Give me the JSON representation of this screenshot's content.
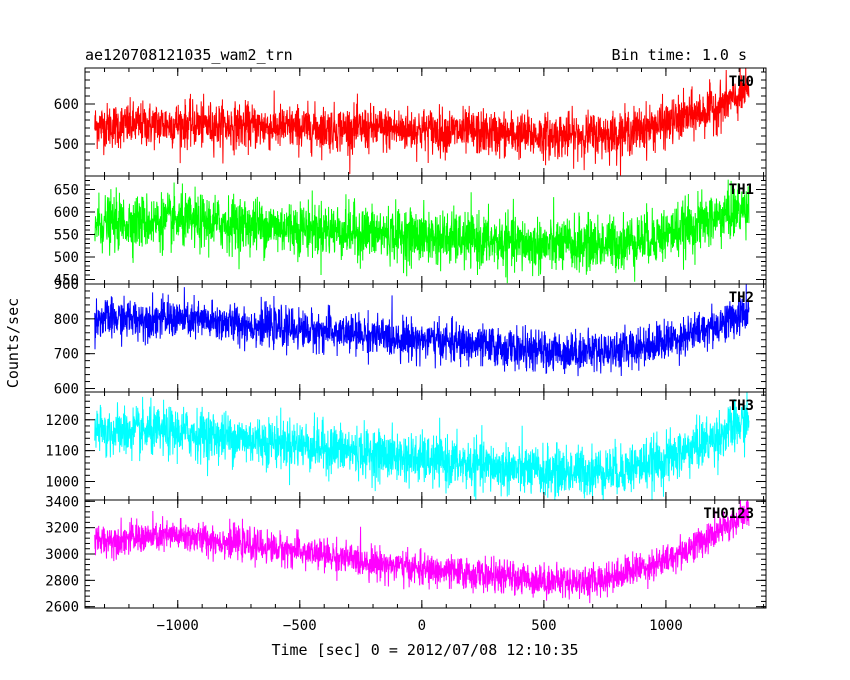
{
  "chart_data": {
    "type": "line",
    "title": "ae120708121035_wam2_trn",
    "subtitle": "Bin time: 1.0 s",
    "xlabel": "Time [sec] 0 = 2012/07/08 12:10:35",
    "ylabel": "Counts/sec",
    "xlim": [
      -1380,
      1410
    ],
    "x_ticks": [
      -1000,
      -500,
      0,
      500,
      1000
    ],
    "x_tick_labels": [
      "−1000",
      "−500",
      "0",
      "500",
      "1000"
    ],
    "x_range_data": [
      -1340,
      1340
    ],
    "legend": "none",
    "grid": false,
    "panels": [
      {
        "name": "TH0",
        "color": "#ff0000",
        "ylim": [
          420,
          690
        ],
        "y_ticks": [
          500,
          600
        ],
        "trend": {
          "x": [
            -1340,
            -1000,
            -500,
            0,
            500,
            800,
            1000,
            1200,
            1340
          ],
          "y": [
            545,
            550,
            540,
            535,
            520,
            525,
            550,
            590,
            630
          ]
        },
        "noise_sd": 28
      },
      {
        "name": "TH1",
        "color": "#00ff00",
        "ylim": [
          440,
          680
        ],
        "y_ticks": [
          450,
          500,
          550,
          600,
          650
        ],
        "trend": {
          "x": [
            -1340,
            -1000,
            -500,
            0,
            500,
            800,
            1000,
            1200,
            1340
          ],
          "y": [
            575,
            580,
            565,
            545,
            525,
            530,
            550,
            585,
            610
          ]
        },
        "noise_sd": 30
      },
      {
        "name": "TH2",
        "color": "#0000ff",
        "ylim": [
          590,
          900
        ],
        "y_ticks": [
          600,
          700,
          800,
          900
        ],
        "trend": {
          "x": [
            -1340,
            -1000,
            -500,
            0,
            500,
            800,
            1000,
            1200,
            1340
          ],
          "y": [
            800,
            800,
            770,
            740,
            705,
            710,
            735,
            780,
            820
          ]
        },
        "noise_sd": 28
      },
      {
        "name": "TH3",
        "color": "#00ffff",
        "ylim": [
          940,
          1290
        ],
        "y_ticks": [
          1000,
          1100,
          1200
        ],
        "trend": {
          "x": [
            -1340,
            -1000,
            -500,
            0,
            500,
            800,
            1000,
            1200,
            1340
          ],
          "y": [
            1160,
            1160,
            1120,
            1070,
            1030,
            1035,
            1070,
            1140,
            1200
          ]
        },
        "noise_sd": 40
      },
      {
        "name": "TH0123",
        "color": "#ff00ff",
        "ylim": [
          2590,
          3410
        ],
        "y_ticks": [
          2600,
          2800,
          3000,
          3200,
          3400
        ],
        "trend": {
          "x": [
            -1340,
            -1000,
            -500,
            0,
            500,
            700,
            1000,
            1200,
            1340
          ],
          "y": [
            3100,
            3140,
            3020,
            2880,
            2800,
            2790,
            2950,
            3150,
            3320
          ]
        },
        "noise_sd": 60
      }
    ]
  }
}
